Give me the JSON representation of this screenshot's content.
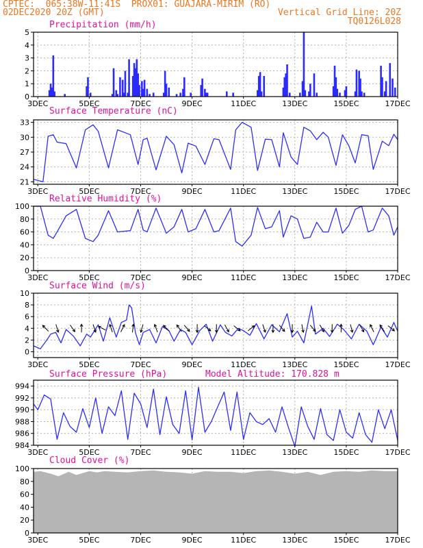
{
  "header": {
    "line1": "CPTEC:  065:38W-11:41S  PROX01: GUAJARA-MIRIM (RO)",
    "line2_left": "02DEC2020 20Z (GMT)",
    "line2_right": "Vertical Grid Line: 20Z",
    "line3_right": "TQ0126L028"
  },
  "colors": {
    "header": "#e87722",
    "title": "#e0119a",
    "series": "#2b2bff",
    "cloud": "#b5b5b5",
    "grid": "#b0b0b0"
  },
  "x_axis": {
    "range": [
      2.8333,
      17.0
    ],
    "tick_days": [
      3,
      5,
      7,
      9,
      11,
      13,
      15,
      17
    ],
    "labels": [
      "3DEC",
      "5DEC",
      "7DEC",
      "9DEC",
      "11DEC",
      "13DEC",
      "15DEC",
      "17DEC"
    ]
  },
  "panels": {
    "precip": {
      "title": "Precipitation (mm/h)"
    },
    "temp": {
      "title": "Surface Temperature (nC)"
    },
    "rh": {
      "title": "Relative Humidity (%)"
    },
    "wind": {
      "title": "Surface Wind (m/s)"
    },
    "press": {
      "title": "Surface Pressure (hPa)",
      "extra": "Model Altitude: 170.828 m"
    },
    "cloud": {
      "title": "Cloud Cover (%)"
    }
  },
  "chart_data": [
    {
      "id": "precip",
      "type": "bar",
      "title": "Precipitation (mm/h)",
      "ylim": [
        0,
        5
      ],
      "yticks": [
        0,
        1,
        2,
        3,
        4,
        5
      ],
      "x": [
        3.45,
        3.5,
        3.55,
        3.6,
        3.65,
        4.05,
        4.9,
        4.95,
        5.05,
        5.9,
        5.95,
        6.05,
        6.1,
        6.2,
        6.3,
        6.35,
        6.4,
        6.5,
        6.55,
        6.7,
        6.75,
        6.8,
        6.85,
        6.9,
        6.95,
        7.05,
        7.1,
        7.15,
        7.25,
        7.35,
        7.5,
        7.9,
        7.95,
        8.0,
        8.1,
        8.4,
        8.55,
        8.65,
        8.7,
        8.95,
        9.35,
        9.4,
        9.5,
        9.55,
        9.6,
        10.35,
        10.6,
        11.55,
        11.6,
        11.65,
        11.7,
        11.8,
        12.55,
        12.6,
        12.65,
        12.7,
        12.8,
        13.2,
        13.3,
        13.35,
        13.4,
        13.55,
        13.6,
        13.75,
        13.85,
        14.5,
        14.55,
        14.6,
        14.65,
        14.75,
        14.95,
        15.0,
        15.35,
        15.4,
        15.5,
        15.55,
        15.6,
        15.7,
        16.35,
        16.4,
        16.5,
        16.55,
        16.7,
        16.8,
        16.9
      ],
      "values": [
        0.5,
        1.0,
        0.7,
        3.2,
        0.4,
        0.2,
        0.8,
        1.5,
        0.3,
        0.2,
        2.2,
        0.5,
        0.2,
        1.5,
        1.3,
        0.3,
        2.0,
        0.3,
        2.9,
        1.6,
        2.6,
        2.2,
        2.9,
        1.8,
        0.9,
        1.2,
        0.6,
        1.3,
        0.6,
        0.2,
        0.3,
        0.3,
        2.0,
        1.0,
        0.7,
        0.2,
        0.3,
        0.6,
        1.5,
        0.3,
        0.9,
        1.4,
        0.6,
        0.3,
        0.3,
        0.4,
        0.3,
        0.5,
        1.6,
        1.9,
        0.4,
        1.6,
        0.7,
        1.5,
        1.8,
        2.5,
        0.3,
        0.3,
        1.2,
        5.0,
        0.5,
        0.4,
        1.0,
        1.8,
        0.3,
        0.8,
        2.4,
        1.5,
        0.6,
        0.3,
        0.5,
        0.8,
        0.4,
        2.1,
        2.0,
        1.4,
        0.4,
        0.3,
        2.4,
        1.5,
        0.4,
        1.2,
        2.6,
        1.4,
        0.7
      ]
    },
    {
      "id": "temp",
      "type": "line",
      "title": "Surface Temperature (nC)",
      "ylim": [
        20.5,
        33.5
      ],
      "yticks": [
        21,
        24,
        27,
        30,
        33
      ],
      "x": [
        2.83,
        3.2,
        3.4,
        3.6,
        3.75,
        4.1,
        4.5,
        4.85,
        5.15,
        5.35,
        5.75,
        6.1,
        6.6,
        6.9,
        7.1,
        7.25,
        7.6,
        8.0,
        8.3,
        8.6,
        8.85,
        9.15,
        9.5,
        9.85,
        10.05,
        10.5,
        10.7,
        10.95,
        11.3,
        11.55,
        11.85,
        12.1,
        12.4,
        12.55,
        12.85,
        13.1,
        13.35,
        13.6,
        13.85,
        14.1,
        14.3,
        14.6,
        14.85,
        15.1,
        15.35,
        15.6,
        15.85,
        16.05,
        16.4,
        16.65,
        16.85,
        17.0
      ],
      "values": [
        21.5,
        21,
        30.2,
        30.5,
        29,
        28.7,
        23.8,
        31.5,
        32.5,
        31.2,
        23.8,
        31.5,
        30.5,
        24.5,
        29.5,
        29.8,
        23.4,
        30.2,
        28.5,
        22.8,
        28.8,
        28.2,
        24.5,
        29.7,
        29.5,
        23.5,
        31.5,
        33.0,
        32.0,
        23.3,
        29.6,
        29.5,
        24.0,
        30.9,
        26,
        24.5,
        32.0,
        31.3,
        29.5,
        31.0,
        30.0,
        24.3,
        30.5,
        28.3,
        24.8,
        30.5,
        30.3,
        23.5,
        29.2,
        28.3,
        30.6,
        29.5
      ]
    },
    {
      "id": "rh",
      "type": "line",
      "title": "Relative Humidity (%)",
      "ylim": [
        0,
        100
      ],
      "yticks": [
        0,
        20,
        40,
        60,
        80,
        100
      ],
      "x": [
        2.83,
        3.1,
        3.4,
        3.6,
        3.75,
        4.1,
        4.5,
        4.85,
        5.15,
        5.35,
        5.75,
        6.1,
        6.6,
        6.9,
        7.1,
        7.25,
        7.6,
        8.0,
        8.3,
        8.6,
        8.85,
        9.15,
        9.5,
        9.85,
        10.05,
        10.5,
        10.7,
        10.95,
        11.3,
        11.55,
        11.85,
        12.1,
        12.4,
        12.55,
        12.85,
        13.1,
        13.35,
        13.6,
        13.85,
        14.1,
        14.3,
        14.6,
        14.85,
        15.1,
        15.35,
        15.6,
        15.85,
        16.05,
        16.4,
        16.65,
        16.85,
        17.0
      ],
      "values": [
        100,
        100,
        55,
        50,
        60,
        85,
        95,
        50,
        45,
        55,
        93,
        60,
        62,
        95,
        63,
        60,
        97,
        58,
        68,
        95,
        60,
        65,
        95,
        60,
        62,
        97,
        45,
        38,
        55,
        98,
        65,
        68,
        93,
        52,
        85,
        80,
        50,
        52,
        75,
        60,
        60,
        97,
        58,
        70,
        95,
        100,
        60,
        63,
        97,
        85,
        55,
        68
      ]
    },
    {
      "id": "wind",
      "type": "line",
      "title": "Surface Wind (m/s)",
      "ylim": [
        -1,
        10
      ],
      "yticks": [
        0,
        2,
        4,
        6,
        8,
        10
      ],
      "x": [
        2.83,
        3.1,
        3.35,
        3.5,
        3.7,
        3.9,
        4.1,
        4.4,
        4.65,
        4.9,
        5.05,
        5.35,
        5.55,
        5.8,
        6.05,
        6.25,
        6.45,
        6.55,
        6.65,
        6.8,
        6.95,
        7.1,
        7.35,
        7.6,
        7.85,
        8.1,
        8.3,
        8.55,
        8.75,
        9.0,
        9.3,
        9.55,
        9.8,
        10.1,
        10.3,
        10.55,
        10.8,
        11.0,
        11.25,
        11.5,
        11.8,
        12.1,
        12.4,
        12.7,
        12.9,
        13.1,
        13.35,
        13.65,
        13.8,
        14.1,
        14.35,
        14.65,
        14.9,
        15.2,
        15.5,
        15.8,
        16.05,
        16.35,
        16.6,
        16.85,
        17.0
      ],
      "values": [
        1,
        0.5,
        2,
        3,
        3.3,
        1.5,
        3.8,
        2.6,
        1,
        3,
        2.5,
        4.6,
        1.8,
        5.8,
        2.5,
        5,
        5.4,
        8,
        7.5,
        3.2,
        1.2,
        3.3,
        3.8,
        1.5,
        4.3,
        3.6,
        1.8,
        3.8,
        3.3,
        1.2,
        3.6,
        4.7,
        1.8,
        4.6,
        3.3,
        2.7,
        4,
        3.6,
        2.8,
        4.8,
        2.2,
        4.6,
        3.4,
        6.5,
        2.5,
        3.5,
        1.5,
        7.8,
        3,
        4,
        2.6,
        4.7,
        3.8,
        2.2,
        4.7,
        3.5,
        1.2,
        4.2,
        2.5,
        5,
        3.5
      ],
      "arrows": {
        "x": [
          3.3,
          3.75,
          4.35,
          4.7,
          5.2,
          5.5,
          5.85,
          6.3,
          6.7,
          7.05,
          7.6,
          8.0,
          8.5,
          8.8,
          9.2,
          9.6,
          9.95,
          10.35,
          10.75,
          11.3,
          11.8,
          12.15,
          12.5,
          12.9,
          13.3,
          13.7,
          14.05,
          14.45,
          14.8,
          15.2,
          15.6,
          16.0,
          16.4,
          16.75
        ],
        "u": [
          -0.5,
          0.3,
          0.5,
          0,
          0.3,
          -0.6,
          -0.3,
          0.6,
          0.2,
          -0.3,
          -0.3,
          -0.6,
          -0.5,
          0.5,
          0,
          0.5,
          0,
          0.4,
          0.5,
          0.5,
          0.3,
          0,
          0.5,
          0,
          0.2,
          0.5,
          0.3,
          0,
          0,
          0.2,
          0.3,
          -0.3,
          -0.4,
          0.5
        ],
        "v": [
          0.5,
          -1,
          -0.7,
          1,
          -0.9,
          0.3,
          0.9,
          1.2,
          1.5,
          -1,
          0.8,
          0.6,
          0.7,
          -0.6,
          -1,
          -0.4,
          -0.8,
          -0.7,
          -0.4,
          0.4,
          -0.9,
          -1,
          -0.6,
          -1.1,
          -1,
          -0.6,
          -0.5,
          -1,
          1,
          -0.8,
          -0.5,
          0.6,
          0.6,
          -0.4
        ]
      }
    },
    {
      "id": "press",
      "type": "line",
      "title": "Surface Pressure (hPa)",
      "ylim": [
        984,
        995
      ],
      "yticks": [
        984,
        986,
        988,
        990,
        992,
        994
      ],
      "x": [
        2.83,
        3.0,
        3.25,
        3.5,
        3.75,
        4.0,
        4.25,
        4.5,
        4.75,
        5.0,
        5.25,
        5.5,
        5.75,
        6.0,
        6.25,
        6.5,
        6.75,
        7.0,
        7.25,
        7.5,
        7.75,
        8.0,
        8.25,
        8.5,
        8.75,
        9.0,
        9.25,
        9.5,
        9.75,
        10.0,
        10.25,
        10.5,
        10.75,
        11.0,
        11.25,
        11.5,
        11.75,
        12.0,
        12.25,
        12.5,
        12.75,
        13.0,
        13.25,
        13.5,
        13.75,
        14.0,
        14.25,
        14.5,
        14.75,
        15.0,
        15.25,
        15.5,
        15.75,
        16.0,
        16.25,
        16.5,
        16.75,
        17.0
      ],
      "values": [
        991,
        990,
        992.5,
        991.8,
        985,
        989.5,
        987.2,
        986.2,
        990.2,
        987,
        992,
        986,
        990.5,
        989,
        993.2,
        985,
        992.8,
        991,
        987,
        993.5,
        985.8,
        992.2,
        987.5,
        986,
        993.2,
        984.9,
        993.8,
        986.2,
        988,
        990.5,
        993,
        986.5,
        993,
        985,
        989.5,
        988,
        987.5,
        988.5,
        986.2,
        990.5,
        987,
        983.8,
        990.5,
        987.2,
        985,
        990.2,
        985.8,
        984.8,
        990,
        986.2,
        985.2,
        989.5,
        985.8,
        984.5,
        990,
        986.8,
        990,
        984.8
      ]
    },
    {
      "id": "cloud",
      "type": "area",
      "title": "Cloud Cover (%)",
      "ylim": [
        0,
        100
      ],
      "yticks": [
        0,
        20,
        40,
        60,
        80,
        100
      ],
      "x": [
        2.83,
        3.1,
        3.5,
        3.8,
        4.2,
        4.5,
        5.0,
        5.3,
        5.6,
        6.0,
        6.5,
        7.0,
        7.5,
        8.0,
        8.5,
        9.0,
        9.5,
        10.0,
        10.5,
        11.0,
        11.5,
        12.0,
        12.5,
        13.0,
        13.5,
        14.0,
        14.5,
        15.0,
        15.5,
        16.0,
        16.5,
        17.0
      ],
      "values": [
        95,
        96,
        92,
        88,
        95,
        90,
        96,
        94,
        96,
        95,
        94,
        96,
        97,
        95,
        94,
        92,
        96,
        95,
        95,
        93,
        96,
        97,
        95,
        92,
        95,
        90,
        95,
        96,
        95,
        97,
        96,
        96
      ]
    }
  ]
}
